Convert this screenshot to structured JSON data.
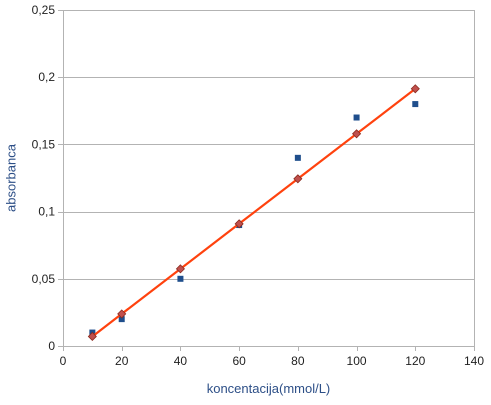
{
  "chart_data": {
    "type": "scatter",
    "xlabel": "koncentacija(mmol/L)",
    "ylabel": "absorbanca",
    "xlim": [
      0,
      140
    ],
    "ylim": [
      0,
      0.25
    ],
    "x_ticks": [
      0,
      20,
      40,
      60,
      80,
      100,
      120,
      140
    ],
    "x_tick_labels": [
      "0",
      "20",
      "40",
      "60",
      "80",
      "100",
      "120",
      "140"
    ],
    "y_ticks": [
      0,
      0.05,
      0.1,
      0.15,
      0.2,
      0.25
    ],
    "y_tick_labels": [
      "0",
      "0,05",
      "0,1",
      "0,15",
      "0,2",
      "0,25"
    ],
    "grid": "horizontal",
    "legend": "none",
    "series": [
      {
        "kind": "points",
        "marker": "square",
        "color": "#1f4e8c",
        "x": [
          10,
          20,
          40,
          60,
          80,
          100,
          120
        ],
        "y": [
          0.01,
          0.02,
          0.05,
          0.09,
          0.14,
          0.17,
          0.18
        ]
      },
      {
        "kind": "line-with-markers",
        "marker": "diamond",
        "color": "#ff420e",
        "marker_color": "#c0504d",
        "x": [
          10,
          20,
          40,
          60,
          80,
          100,
          120
        ],
        "y": [
          0.0071,
          0.0239,
          0.0574,
          0.0909,
          0.1244,
          0.1579,
          0.1914
        ]
      }
    ]
  }
}
